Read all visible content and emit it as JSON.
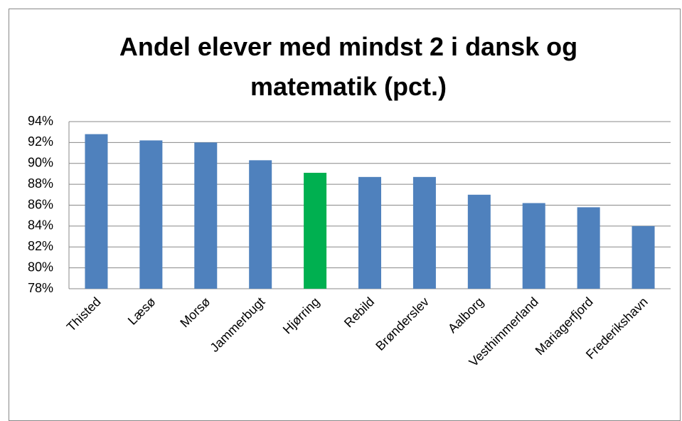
{
  "chart_data": {
    "type": "bar",
    "title": "Andel elever med mindst 2 i dansk og matematik (pct.)",
    "categories": [
      "Thisted",
      "Læsø",
      "Morsø",
      "Jammerbugt",
      "Hjørring",
      "Rebild",
      "Brønderslev",
      "Aalborg",
      "Vesthimmerland",
      "Mariagerfjord",
      "Frederikshavn"
    ],
    "values": [
      92.8,
      92.2,
      92.0,
      90.3,
      89.1,
      88.7,
      88.7,
      87.0,
      86.2,
      85.8,
      84.0
    ],
    "colors": [
      "#4f81bd",
      "#4f81bd",
      "#4f81bd",
      "#4f81bd",
      "#00b050",
      "#4f81bd",
      "#4f81bd",
      "#4f81bd",
      "#4f81bd",
      "#4f81bd",
      "#4f81bd"
    ],
    "ylim": [
      78,
      94
    ],
    "yticks": [
      {
        "value": 78,
        "label": "78%"
      },
      {
        "value": 80,
        "label": "80%"
      },
      {
        "value": 82,
        "label": "82%"
      },
      {
        "value": 84,
        "label": "84%"
      },
      {
        "value": 86,
        "label": "86%"
      },
      {
        "value": 88,
        "label": "88%"
      },
      {
        "value": 90,
        "label": "90%"
      },
      {
        "value": 92,
        "label": "92%"
      },
      {
        "value": 94,
        "label": "94%"
      }
    ],
    "grid": true
  }
}
